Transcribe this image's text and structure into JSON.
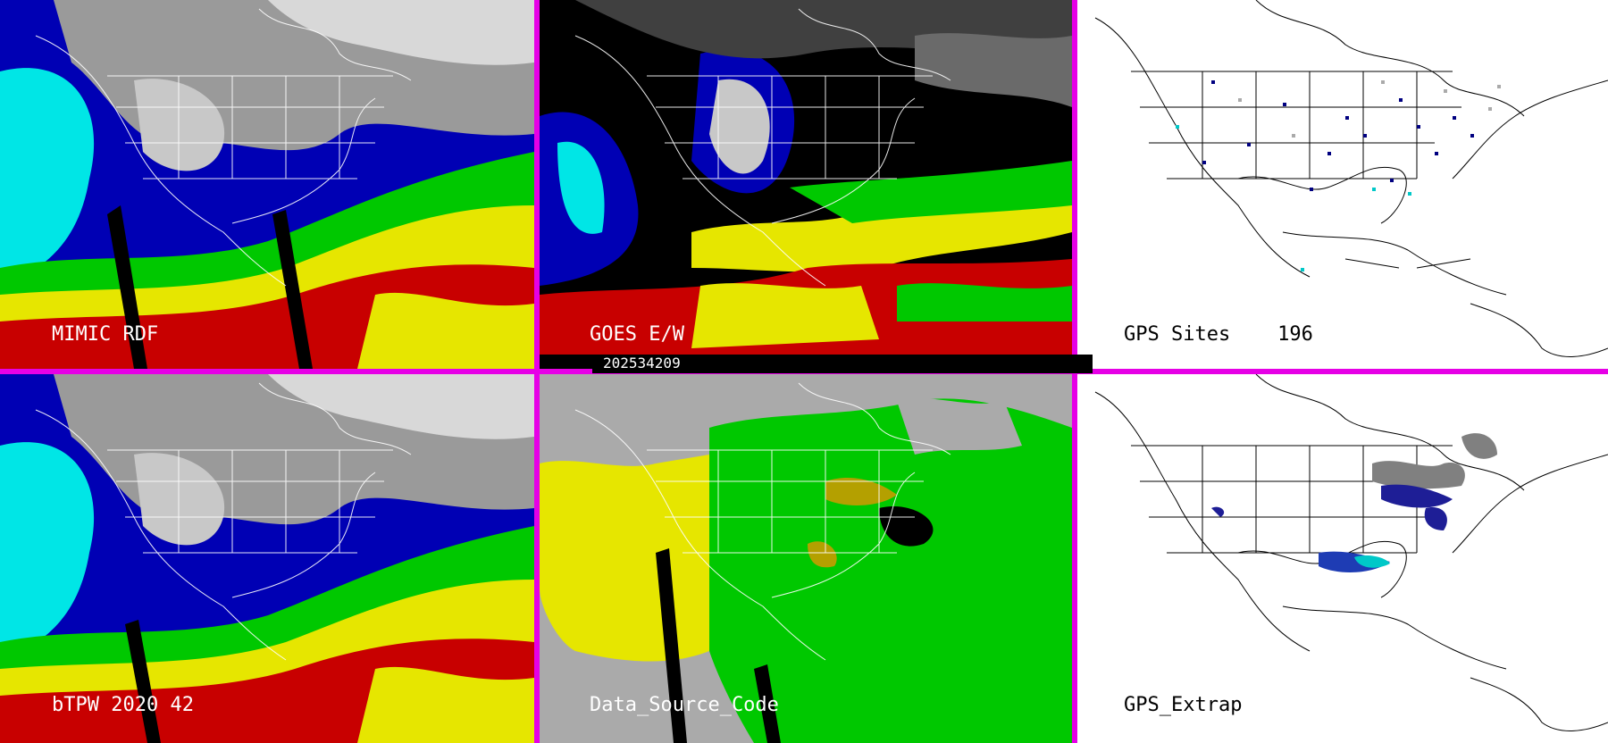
{
  "panels": {
    "mimic": {
      "label": "MIMIC RDF"
    },
    "goes": {
      "label": "GOES E/W"
    },
    "gps_sites": {
      "label": "GPS Sites    196"
    },
    "btpw": {
      "label": "bTPW 2020 42"
    },
    "data_source": {
      "label": "Data_Source_Code"
    },
    "gps_extrap": {
      "label": "GPS_Extrap"
    }
  },
  "timestamp": "202534209",
  "colors": {
    "divider": "#e600e6",
    "tpw_red": "#c80000",
    "tpw_yellow": "#e6e600",
    "tpw_green": "#00c800",
    "tpw_cyan": "#00e6e6",
    "tpw_blue": "#0000b4",
    "gray": "#aaaaaa"
  }
}
